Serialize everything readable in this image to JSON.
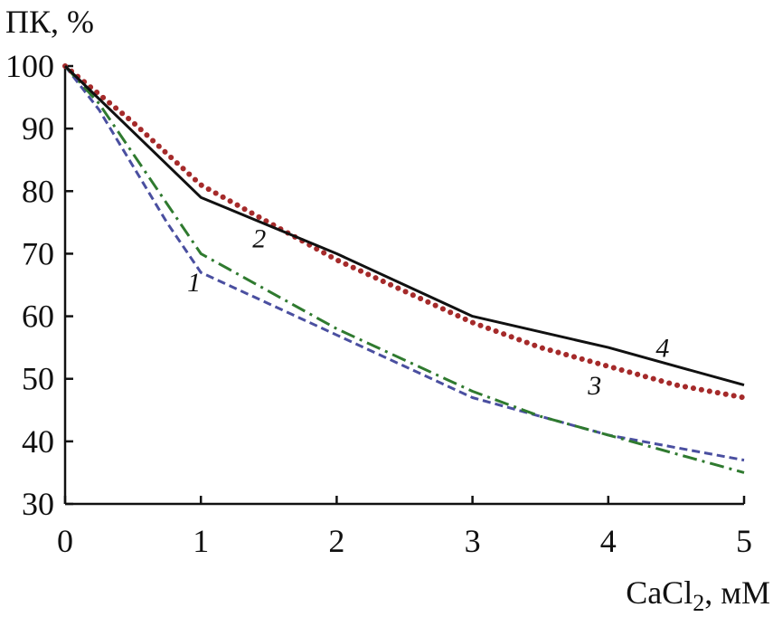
{
  "chart_data": {
    "type": "line",
    "ylabel": "ПК, %",
    "xlabel_main": "CaCl",
    "xlabel_sub": "2",
    "xlabel_unit": ", мМ",
    "xlim": [
      0,
      5
    ],
    "ylim": [
      30,
      100
    ],
    "x_ticks": [
      0,
      1,
      2,
      3,
      4,
      5
    ],
    "y_ticks": [
      30,
      40,
      50,
      60,
      70,
      80,
      90,
      100
    ],
    "grid": false,
    "series": [
      {
        "name": "1",
        "color": "#4a4fa0",
        "style": "dashed",
        "x": [
          0,
          0.25,
          0.5,
          0.75,
          1,
          1.5,
          2,
          2.5,
          3,
          3.5,
          4,
          4.5,
          5
        ],
        "y": [
          100,
          93,
          84,
          75,
          67,
          62,
          57,
          52,
          47,
          44,
          41,
          39,
          37
        ]
      },
      {
        "name": "2",
        "color": "#2f7a2f",
        "style": "dashdot",
        "x": [
          0,
          0.25,
          0.5,
          0.75,
          1,
          1.5,
          2,
          2.5,
          3,
          3.5,
          4,
          4.5,
          5
        ],
        "y": [
          100,
          94,
          86,
          78,
          70,
          64,
          58,
          53,
          48,
          44,
          41,
          38,
          35
        ]
      },
      {
        "name": "3",
        "color": "#a52a2a",
        "style": "dotted",
        "x": [
          0,
          0.5,
          1,
          1.5,
          2,
          2.5,
          3,
          3.5,
          4,
          4.5,
          5
        ],
        "y": [
          100,
          91,
          81,
          75,
          69,
          64,
          59,
          55,
          52,
          49,
          47
        ]
      },
      {
        "name": "4",
        "color": "#111111",
        "style": "solid",
        "x": [
          0,
          1,
          2,
          3,
          4,
          5
        ],
        "y": [
          100,
          79,
          70,
          60,
          55,
          49
        ]
      }
    ],
    "curve_labels": [
      {
        "text": "1",
        "x": 0.9,
        "y": 64
      },
      {
        "text": "2",
        "x": 1.38,
        "y": 71
      },
      {
        "text": "3",
        "x": 3.85,
        "y": 47.5
      },
      {
        "text": "4",
        "x": 4.35,
        "y": 53.5
      }
    ]
  }
}
